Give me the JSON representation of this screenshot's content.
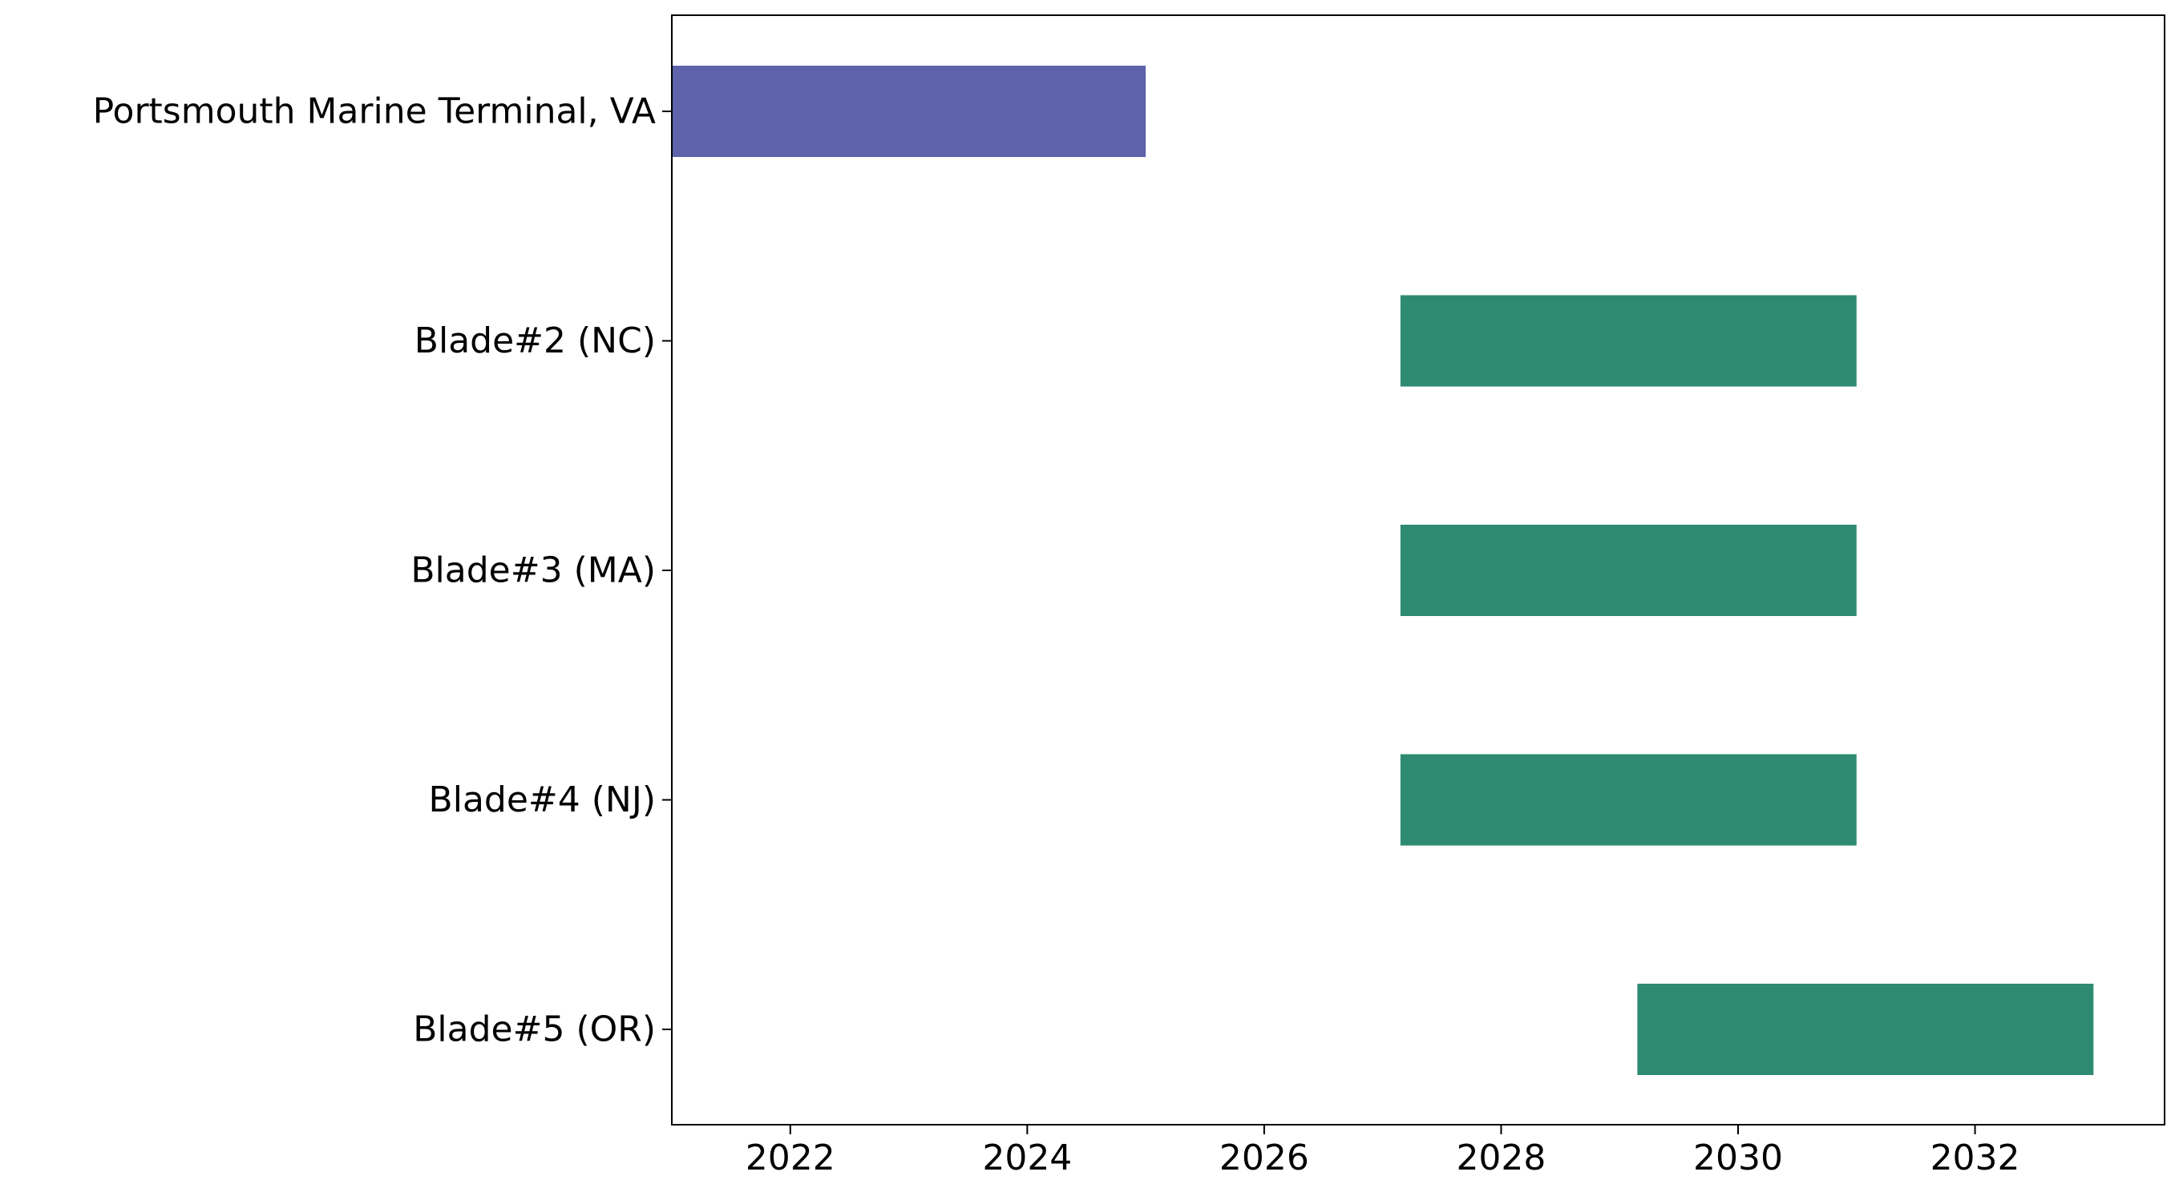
{
  "chart_data": {
    "type": "bar",
    "orientation": "horizontal-gantt",
    "title": "",
    "xlabel": "",
    "ylabel": "",
    "xlim": [
      2021,
      2033.6
    ],
    "x_ticks": [
      2022,
      2024,
      2026,
      2028,
      2030,
      2032
    ],
    "categories": [
      "Portsmouth Marine Terminal, VA",
      "Blade#2 (NC)",
      "Blade#3 (MA)",
      "Blade#4 (NJ)",
      "Blade#5 (OR)"
    ],
    "bars": [
      {
        "category": "Portsmouth Marine Terminal, VA",
        "start": 2021.0,
        "end": 2025.0,
        "color": "#5d62aa"
      },
      {
        "category": "Blade#2 (NC)",
        "start": 2027.15,
        "end": 2031.0,
        "color": "#2e8b72"
      },
      {
        "category": "Blade#3 (MA)",
        "start": 2027.15,
        "end": 2031.0,
        "color": "#2e8b72"
      },
      {
        "category": "Blade#4 (NJ)",
        "start": 2027.15,
        "end": 2031.0,
        "color": "#2e8b72"
      },
      {
        "category": "Blade#5 (OR)",
        "start": 2029.15,
        "end": 2033.0,
        "color": "#2e8b72"
      }
    ],
    "grid": false,
    "legend": "none"
  }
}
